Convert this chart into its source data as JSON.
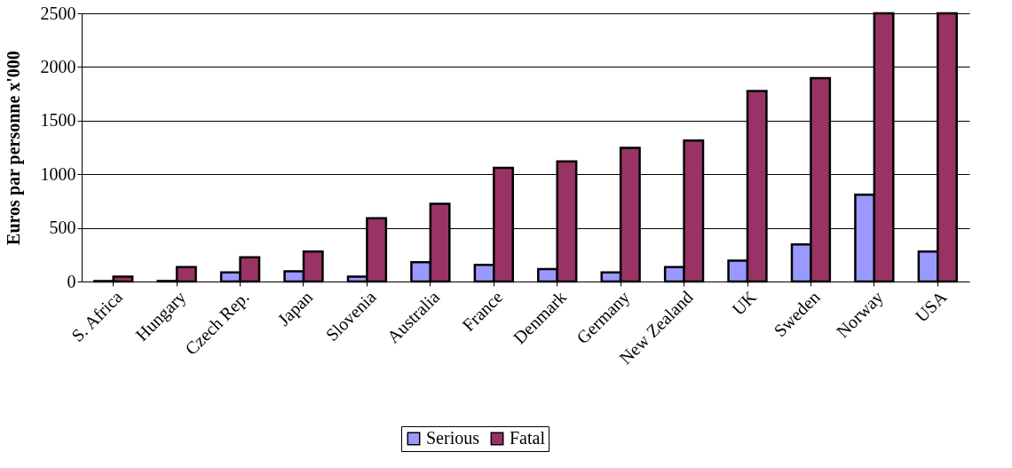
{
  "chart_data": {
    "type": "bar",
    "ylabel": "Euros par personne x'000",
    "categories": [
      "S. Africa",
      "Hungary",
      "Czech Rep.",
      "Japan",
      "Slovenia",
      "Australia",
      "France",
      "Denmark",
      "Germany",
      "New Zealand",
      "UK",
      "Sweden",
      "Norway",
      "USA"
    ],
    "series": [
      {
        "name": "Serious",
        "color": "#9999ff",
        "values": [
          5,
          5,
          85,
          95,
          45,
          180,
          155,
          115,
          85,
          135,
          195,
          345,
          810,
          280
        ]
      },
      {
        "name": "Fatal",
        "color": "#993366",
        "values": [
          45,
          135,
          225,
          280,
          590,
          725,
          1060,
          1120,
          1245,
          1315,
          1775,
          1895,
          2500,
          2500
        ]
      }
    ],
    "ylim": [
      0,
      2500
    ],
    "yticks": [
      0,
      500,
      1000,
      1500,
      2000,
      2500
    ],
    "grid": "y",
    "legend": "bottom"
  }
}
